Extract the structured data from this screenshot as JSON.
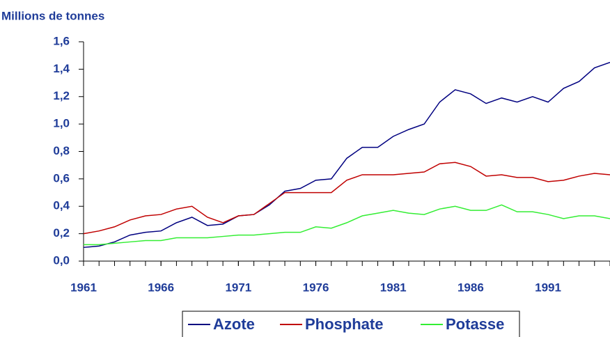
{
  "chart_data": {
    "type": "line",
    "title": "Millions de tonnes",
    "x": [
      1961,
      1962,
      1963,
      1964,
      1965,
      1966,
      1967,
      1968,
      1969,
      1970,
      1971,
      1972,
      1973,
      1974,
      1975,
      1976,
      1977,
      1978,
      1979,
      1980,
      1981,
      1982,
      1983,
      1984,
      1985,
      1986,
      1987,
      1988,
      1989,
      1990,
      1991,
      1992,
      1993,
      1994,
      1995
    ],
    "series": [
      {
        "name": "Azote",
        "color": "#000080",
        "values": [
          0.1,
          0.11,
          0.14,
          0.19,
          0.21,
          0.22,
          0.28,
          0.32,
          0.26,
          0.27,
          0.33,
          0.34,
          0.41,
          0.51,
          0.53,
          0.59,
          0.6,
          0.75,
          0.83,
          0.83,
          0.91,
          0.96,
          1.0,
          1.16,
          1.25,
          1.22,
          1.15,
          1.19,
          1.16,
          1.2,
          1.16,
          1.26,
          1.31,
          1.41,
          1.45
        ]
      },
      {
        "name": "Phosphate",
        "color": "#c00000",
        "values": [
          0.2,
          0.22,
          0.25,
          0.3,
          0.33,
          0.34,
          0.38,
          0.4,
          0.32,
          0.28,
          0.33,
          0.34,
          0.42,
          0.5,
          0.5,
          0.5,
          0.5,
          0.59,
          0.63,
          0.63,
          0.63,
          0.64,
          0.65,
          0.71,
          0.72,
          0.69,
          0.62,
          0.63,
          0.61,
          0.61,
          0.58,
          0.59,
          0.62,
          0.64,
          0.63
        ]
      },
      {
        "name": "Potasse",
        "color": "#33ee33",
        "values": [
          0.12,
          0.12,
          0.13,
          0.14,
          0.15,
          0.15,
          0.17,
          0.17,
          0.17,
          0.18,
          0.19,
          0.19,
          0.2,
          0.21,
          0.21,
          0.25,
          0.24,
          0.28,
          0.33,
          0.35,
          0.37,
          0.35,
          0.34,
          0.38,
          0.4,
          0.37,
          0.37,
          0.41,
          0.36,
          0.36,
          0.34,
          0.31,
          0.33,
          0.33,
          0.31
        ]
      }
    ],
    "xlim": [
      1961,
      1995
    ],
    "xticks": [
      1961,
      1966,
      1971,
      1976,
      1981,
      1986,
      1991
    ],
    "ylim": [
      0,
      1.6
    ],
    "yticks": [
      {
        "value": 0,
        "label": "0,0"
      },
      {
        "value": 0.2,
        "label": "0,2"
      },
      {
        "value": 0.4,
        "label": "0,4"
      },
      {
        "value": 0.6,
        "label": "0,6"
      },
      {
        "value": 0.8,
        "label": "0,8"
      },
      {
        "value": 1.0,
        "label": "1,0"
      },
      {
        "value": 1.2,
        "label": "1,2"
      },
      {
        "value": 1.4,
        "label": "1,4"
      },
      {
        "value": 1.6,
        "label": "1,6"
      }
    ],
    "legend": "bottom"
  }
}
